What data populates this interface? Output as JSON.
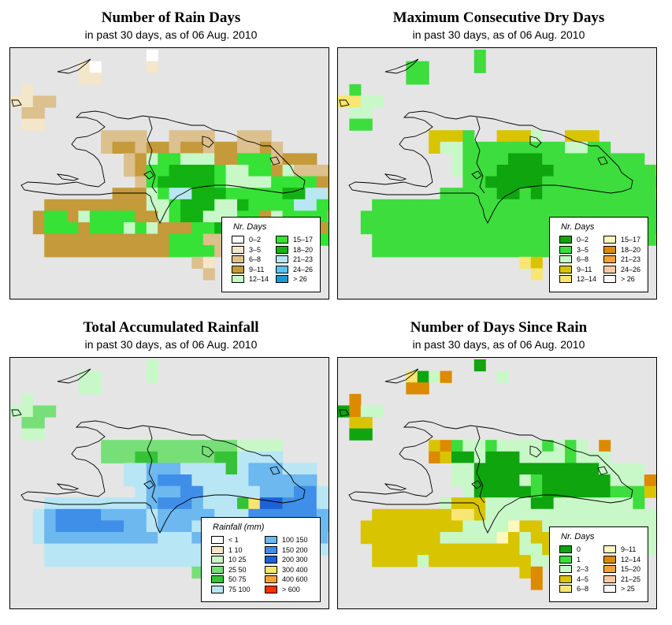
{
  "panels": [
    {
      "title": "Number of Rain Days",
      "subtitle": "in past 30 days, as of  06 Aug. 2010",
      "legend_title": "Nr. Days",
      "legend": [
        {
          "label": "0–2",
          "color": "#ffffff"
        },
        {
          "label": "3–5",
          "color": "#f3e6c9"
        },
        {
          "label": "6–8",
          "color": "#dcc08e"
        },
        {
          "label": "9–11",
          "color": "#c49a3a"
        },
        {
          "label": "12–14",
          "color": "#c8f7c8"
        },
        {
          "label": "15–17",
          "color": "#36e236"
        },
        {
          "label": "18–20",
          "color": "#12b212"
        },
        {
          "label": "21–23",
          "color": "#b8e6f5"
        },
        {
          "label": "24–26",
          "color": "#5cc2ee"
        },
        {
          "label": "> 26",
          "color": "#1f98cf"
        }
      ],
      "grid": [
        "............1.........................",
        "......21....2.........................",
        "......22..............................",
        ".2....................................",
        "2233..................................",
        ".33...........................",
        ".22..........................",
        "........3333..3333..333.........",
        "........3443443443443343........",
        "..........34566555446663444.....",
        "..........34667777655664533344..",
        "...........3677777655556666444..",
        ".........444568877766666778844..",
        "...4444444445567775576666886643",
        "..4664566664456775556645666633..",
        "..466646665654446673333334446663",
        "...44444444444666333333344466663",
        "...4444444444466663322...33.....",
        "................32.2............",
        ".................3..............",
        "................................"
      ]
    },
    {
      "title": "Maximum Consecutive Dry Days",
      "subtitle": "in past 30 days, as of  06 Aug. 2010",
      "legend_title": "Nr. Days",
      "legend": [
        {
          "label": "0–2",
          "color": "#0fa50f"
        },
        {
          "label": "3–5",
          "color": "#3ddd3d"
        },
        {
          "label": "6–8",
          "color": "#c8f7c8"
        },
        {
          "label": "9–11",
          "color": "#d8c400"
        },
        {
          "label": "12–14",
          "color": "#f7e672"
        },
        {
          "label": "15–17",
          "color": "#fff7c0"
        },
        {
          "label": "18–20",
          "color": "#dc8a00"
        },
        {
          "label": "21–23",
          "color": "#f3a238"
        },
        {
          "label": "24–26",
          "color": "#f7c9a2"
        },
        {
          "label": "> 26",
          "color": "#ffffff"
        }
      ],
      "grid": [
        "............2.........................",
        "......22....2.........................",
        "......22..............................",
        ".2....................................",
        "5533..................................",
        ".33...........................",
        ".22..........................",
        "........4442..4443..444.........",
        "........4332222222223322........",
        "..........32222111222222222.....",
        "..........3222111112222222224...",
        "...........2211111222222222224..",
        ".........222221121222222222244..",
        "...2222222222222222222222222224",
        "..222222222222222222222222222224",
        "..222222222222222222222222222224",
        "...22222222222222222222222224445",
        "...2222222222222222222...4......",
        "................54.4............",
        ".................5..............",
        "................................"
      ]
    },
    {
      "title": "Total Accumulated Rainfall",
      "subtitle": "in past 30 days, as of  06 Aug. 2010",
      "legend_title": "Rainfall (mm)",
      "legend": [
        {
          "label": "< 1",
          "color": "#ffffff"
        },
        {
          "label": "1   10",
          "color": "#f3e6c9"
        },
        {
          "label": "10   25",
          "color": "#c8f7c8"
        },
        {
          "label": "25   50",
          "color": "#78df78"
        },
        {
          "label": "50   75",
          "color": "#36c236"
        },
        {
          "label": "75  100",
          "color": "#b8e6f5"
        },
        {
          "label": "100  150",
          "color": "#6cb8ef"
        },
        {
          "label": "150  200",
          "color": "#3f8ee8"
        },
        {
          "label": "200  300",
          "color": "#1d62d4"
        },
        {
          "label": "300  400",
          "color": "#f7e672"
        },
        {
          "label": "400  600",
          "color": "#f3a238"
        },
        {
          "label": "> 600",
          "color": "#ff3000"
        }
      ],
      "grid": [
        "............3.........................",
        "......33....3.........................",
        "......33..............................",
        ".3....................................",
        "3344..................................",
        ".44...........................",
        ".33..........................",
        "........4444444444443333........",
        "........4445544444556666........",
        "..........66777666656777666.....",
        "..........66788866666777777.....",
        "...........6777886666677788666..",
        "...666666666788876665A9988866...",
        "..67888877776777776668888887766.",
        "..678888887767776666667777777766",
        "..677777777776667777777777776...",
        "...6666666666666666666666666666.",
        "...66666666666666666...66.......",
        "................44.4............",
        ".................6..............",
        "................................"
      ]
    },
    {
      "title": "Number of Days Since Rain",
      "subtitle": "in past 30 days, as of  06 Aug. 2010",
      "legend_title": "Nr. Days",
      "legend": [
        {
          "label": "0",
          "color": "#0fa50f"
        },
        {
          "label": "1",
          "color": "#3ddd3d"
        },
        {
          "label": "2–3",
          "color": "#c8f7c8"
        },
        {
          "label": "4–5",
          "color": "#d8c400"
        },
        {
          "label": "6–8",
          "color": "#f7e672"
        },
        {
          "label": "9–11",
          "color": "#fff7c0"
        },
        {
          "label": "12–14",
          "color": "#dc8a00"
        },
        {
          "label": "15–20",
          "color": "#f3a238"
        },
        {
          "label": "21–25",
          "color": "#f7c9a2"
        },
        {
          "label": "> 25",
          "color": "#ffffff"
        }
      ],
      "grid": [
        "............1.........................",
        "......5137....3.........................",
        "......77..............................",
        ".7....................................",
        "1733..................................",
        ".44...........................",
        ".11..........................",
        "........47233233332323.7........",
        "........7411311133332333........",
        "..........33111111111113333.....",
        "..........3311113211111133377...",
        "...........31111121111112224....",
        ".........344433331133333332....7",
        "...444444455433333333333333333447",
        "..44444444433336443333333333333..",
        "..44444443333364344333333333333.",
        "...44444444444443344433333333...",
        "...44443444444444334.....3......",
        "................47.4............",
        ".................7..............",
        "................................"
      ]
    }
  ]
}
